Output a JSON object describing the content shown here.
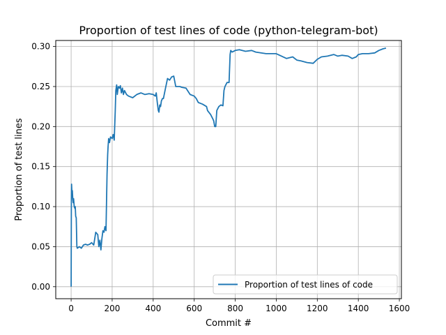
{
  "chart_data": {
    "type": "line",
    "title": "Proportion of test lines of code (python-telegram-bot)",
    "xlabel": "Commit #",
    "ylabel": "Proportion of test lines",
    "xlim": [
      -75,
      1610
    ],
    "ylim": [
      -0.015,
      0.3075
    ],
    "xticks": [
      0,
      200,
      400,
      600,
      800,
      1000,
      1200,
      1400,
      1600
    ],
    "xtick_labels": [
      "0",
      "200",
      "400",
      "600",
      "800",
      "1000",
      "1200",
      "1400",
      "1600"
    ],
    "yticks": [
      0.0,
      0.05,
      0.1,
      0.15,
      0.2,
      0.25,
      0.3
    ],
    "ytick_labels": [
      "0.00",
      "0.05",
      "0.10",
      "0.15",
      "0.20",
      "0.25",
      "0.30"
    ],
    "grid": true,
    "legend_position": "lower-right",
    "series": [
      {
        "name": "Proportion of test lines of code",
        "color": "#1f77b4",
        "x": [
          0,
          1,
          2,
          4,
          6,
          8,
          10,
          12,
          15,
          18,
          20,
          22,
          25,
          28,
          30,
          35,
          40,
          50,
          60,
          70,
          80,
          90,
          100,
          110,
          120,
          130,
          135,
          140,
          145,
          150,
          155,
          160,
          165,
          170,
          175,
          178,
          180,
          183,
          187,
          192,
          200,
          205,
          210,
          215,
          218,
          222,
          225,
          230,
          235,
          240,
          245,
          250,
          255,
          260,
          270,
          280,
          300,
          320,
          340,
          360,
          380,
          400,
          410,
          415,
          420,
          425,
          428,
          432,
          436,
          440,
          445,
          450,
          460,
          470,
          480,
          490,
          500,
          510,
          520,
          525,
          530,
          540,
          560,
          580,
          600,
          610,
          620,
          640,
          660,
          665,
          680,
          690,
          695,
          700,
          705,
          710,
          720,
          730,
          740,
          745,
          750,
          760,
          770,
          775,
          778,
          785,
          800,
          820,
          850,
          880,
          900,
          950,
          1000,
          1050,
          1080,
          1100,
          1120,
          1150,
          1180,
          1200,
          1220,
          1250,
          1280,
          1300,
          1320,
          1350,
          1370,
          1390,
          1400,
          1420,
          1450,
          1480,
          1500,
          1520,
          1535
        ],
        "values": [
          0.0,
          0.105,
          0.128,
          0.115,
          0.12,
          0.11,
          0.105,
          0.11,
          0.1,
          0.098,
          0.1,
          0.088,
          0.086,
          0.05,
          0.048,
          0.049,
          0.05,
          0.048,
          0.052,
          0.053,
          0.052,
          0.053,
          0.055,
          0.052,
          0.068,
          0.065,
          0.05,
          0.058,
          0.046,
          0.06,
          0.07,
          0.068,
          0.075,
          0.07,
          0.14,
          0.165,
          0.175,
          0.185,
          0.18,
          0.187,
          0.185,
          0.19,
          0.183,
          0.22,
          0.245,
          0.252,
          0.24,
          0.25,
          0.248,
          0.251,
          0.242,
          0.248,
          0.24,
          0.245,
          0.24,
          0.238,
          0.236,
          0.24,
          0.242,
          0.24,
          0.241,
          0.24,
          0.238,
          0.242,
          0.23,
          0.22,
          0.218,
          0.227,
          0.225,
          0.232,
          0.235,
          0.235,
          0.248,
          0.26,
          0.258,
          0.262,
          0.263,
          0.25,
          0.25,
          0.25,
          0.25,
          0.249,
          0.248,
          0.24,
          0.238,
          0.235,
          0.23,
          0.228,
          0.225,
          0.22,
          0.215,
          0.21,
          0.207,
          0.2,
          0.2,
          0.22,
          0.225,
          0.227,
          0.226,
          0.245,
          0.25,
          0.255,
          0.255,
          0.29,
          0.295,
          0.293,
          0.295,
          0.296,
          0.294,
          0.295,
          0.293,
          0.291,
          0.291,
          0.285,
          0.287,
          0.283,
          0.282,
          0.28,
          0.279,
          0.284,
          0.287,
          0.288,
          0.29,
          0.288,
          0.289,
          0.288,
          0.285,
          0.287,
          0.29,
          0.291,
          0.291,
          0.292,
          0.295,
          0.297,
          0.298
        ]
      }
    ]
  }
}
